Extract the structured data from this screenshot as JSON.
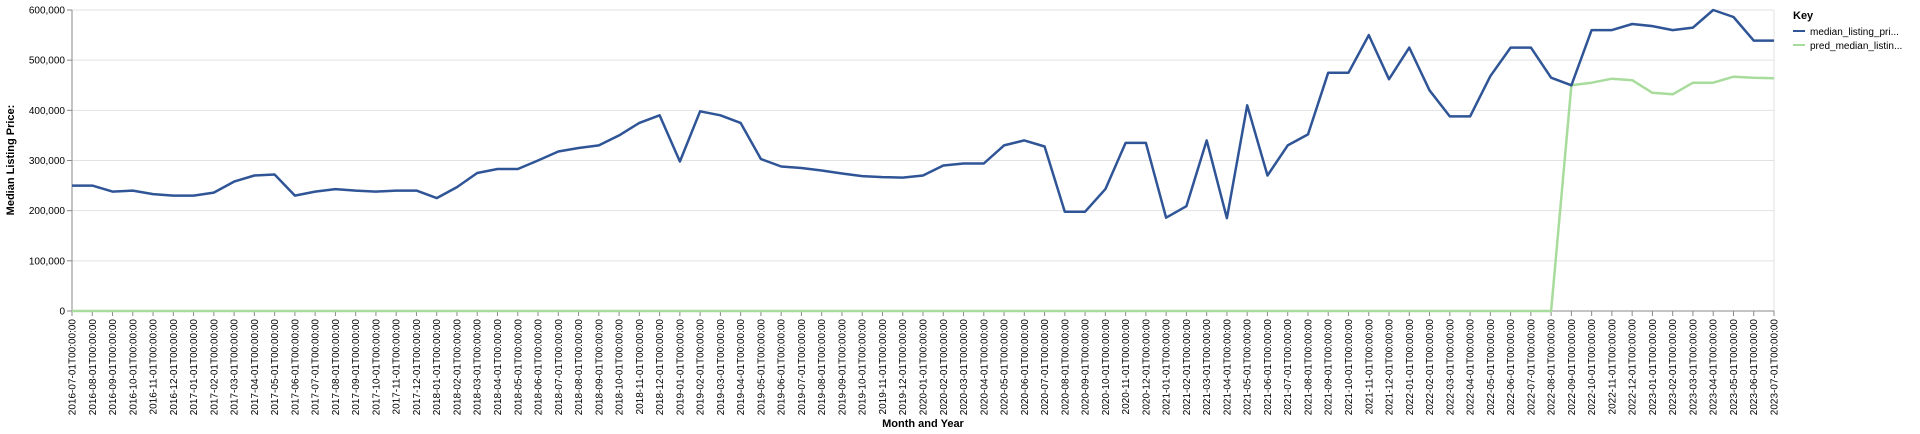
{
  "chart_data": {
    "type": "line",
    "xlabel": "Month and Year",
    "ylabel": "Median Listing Price:",
    "ylim": [
      0,
      600000
    ],
    "yticks": [
      "0",
      "100,000",
      "200,000",
      "300,000",
      "400,000",
      "500,000",
      "600,000"
    ],
    "grid": true,
    "legend": {
      "title": "Key",
      "position": "right",
      "entries": [
        "median_listing_pri...",
        "pred_median_listin..."
      ]
    },
    "x": [
      "2016-07-01T00:00:00",
      "2016-08-01T00:00:00",
      "2016-09-01T00:00:00",
      "2016-10-01T00:00:00",
      "2016-11-01T00:00:00",
      "2016-12-01T00:00:00",
      "2017-01-01T00:00:00",
      "2017-02-01T00:00:00",
      "2017-03-01T00:00:00",
      "2017-04-01T00:00:00",
      "2017-05-01T00:00:00",
      "2017-06-01T00:00:00",
      "2017-07-01T00:00:00",
      "2017-08-01T00:00:00",
      "2017-09-01T00:00:00",
      "2017-10-01T00:00:00",
      "2017-11-01T00:00:00",
      "2017-12-01T00:00:00",
      "2018-01-01T00:00:00",
      "2018-02-01T00:00:00",
      "2018-03-01T00:00:00",
      "2018-04-01T00:00:00",
      "2018-05-01T00:00:00",
      "2018-06-01T00:00:00",
      "2018-07-01T00:00:00",
      "2018-08-01T00:00:00",
      "2018-09-01T00:00:00",
      "2018-10-01T00:00:00",
      "2018-11-01T00:00:00",
      "2018-12-01T00:00:00",
      "2019-01-01T00:00:00",
      "2019-02-01T00:00:00",
      "2019-03-01T00:00:00",
      "2019-04-01T00:00:00",
      "2019-05-01T00:00:00",
      "2019-06-01T00:00:00",
      "2019-07-01T00:00:00",
      "2019-08-01T00:00:00",
      "2019-09-01T00:00:00",
      "2019-10-01T00:00:00",
      "2019-11-01T00:00:00",
      "2019-12-01T00:00:00",
      "2020-01-01T00:00:00",
      "2020-02-01T00:00:00",
      "2020-03-01T00:00:00",
      "2020-04-01T00:00:00",
      "2020-05-01T00:00:00",
      "2020-06-01T00:00:00",
      "2020-07-01T00:00:00",
      "2020-08-01T00:00:00",
      "2020-09-01T00:00:00",
      "2020-10-01T00:00:00",
      "2020-11-01T00:00:00",
      "2020-12-01T00:00:00",
      "2021-01-01T00:00:00",
      "2021-02-01T00:00:00",
      "2021-03-01T00:00:00",
      "2021-04-01T00:00:00",
      "2021-05-01T00:00:00",
      "2021-06-01T00:00:00",
      "2021-07-01T00:00:00",
      "2021-08-01T00:00:00",
      "2021-09-01T00:00:00",
      "2021-10-01T00:00:00",
      "2021-11-01T00:00:00",
      "2021-12-01T00:00:00",
      "2022-01-01T00:00:00",
      "2022-02-01T00:00:00",
      "2022-03-01T00:00:00",
      "2022-04-01T00:00:00",
      "2022-05-01T00:00:00",
      "2022-06-01T00:00:00",
      "2022-07-01T00:00:00",
      "2022-08-01T00:00:00",
      "2022-09-01T00:00:00",
      "2022-10-01T00:00:00",
      "2022-11-01T00:00:00",
      "2022-12-01T00:00:00",
      "2023-01-01T00:00:00",
      "2023-02-01T00:00:00",
      "2023-03-01T00:00:00",
      "2023-04-01T00:00:00",
      "2023-05-01T00:00:00",
      "2023-06-01T00:00:00",
      "2023-07-01T00:00:00"
    ],
    "series": [
      {
        "name": "median_listing_pri...",
        "color": "#2f5597",
        "values": [
          250000,
          250000,
          238000,
          240000,
          233000,
          230000,
          230000,
          236000,
          258000,
          270000,
          272000,
          230000,
          238000,
          243000,
          240000,
          238000,
          240000,
          240000,
          225000,
          247000,
          275000,
          283000,
          283000,
          300000,
          318000,
          325000,
          330000,
          350000,
          375000,
          390000,
          298000,
          398000,
          390000,
          375000,
          303000,
          288000,
          285000,
          280000,
          274000,
          269000,
          267000,
          266000,
          270000,
          290000,
          294000,
          294000,
          330000,
          340000,
          328000,
          198000,
          198000,
          243000,
          335000,
          335000,
          186000,
          209000,
          340000,
          185000,
          410000,
          270000,
          330000,
          352000,
          475000,
          475000,
          550000,
          462000,
          525000,
          440000,
          388000,
          388000,
          468000,
          525000,
          525000,
          465000,
          450000,
          560000,
          560000,
          572000,
          568000,
          560000,
          565000,
          600000,
          586000,
          539000,
          539000
        ]
      },
      {
        "name": "pred_median_listin...",
        "color": "#a8dc9c",
        "values": [
          0,
          0,
          0,
          0,
          0,
          0,
          0,
          0,
          0,
          0,
          0,
          0,
          0,
          0,
          0,
          0,
          0,
          0,
          0,
          0,
          0,
          0,
          0,
          0,
          0,
          0,
          0,
          0,
          0,
          0,
          0,
          0,
          0,
          0,
          0,
          0,
          0,
          0,
          0,
          0,
          0,
          0,
          0,
          0,
          0,
          0,
          0,
          0,
          0,
          0,
          0,
          0,
          0,
          0,
          0,
          0,
          0,
          0,
          0,
          0,
          0,
          0,
          0,
          0,
          0,
          0,
          0,
          0,
          0,
          0,
          0,
          0,
          0,
          0,
          450000,
          455000,
          463000,
          460000,
          435000,
          432000,
          455000,
          455000,
          467000,
          465000,
          464000
        ]
      }
    ]
  }
}
